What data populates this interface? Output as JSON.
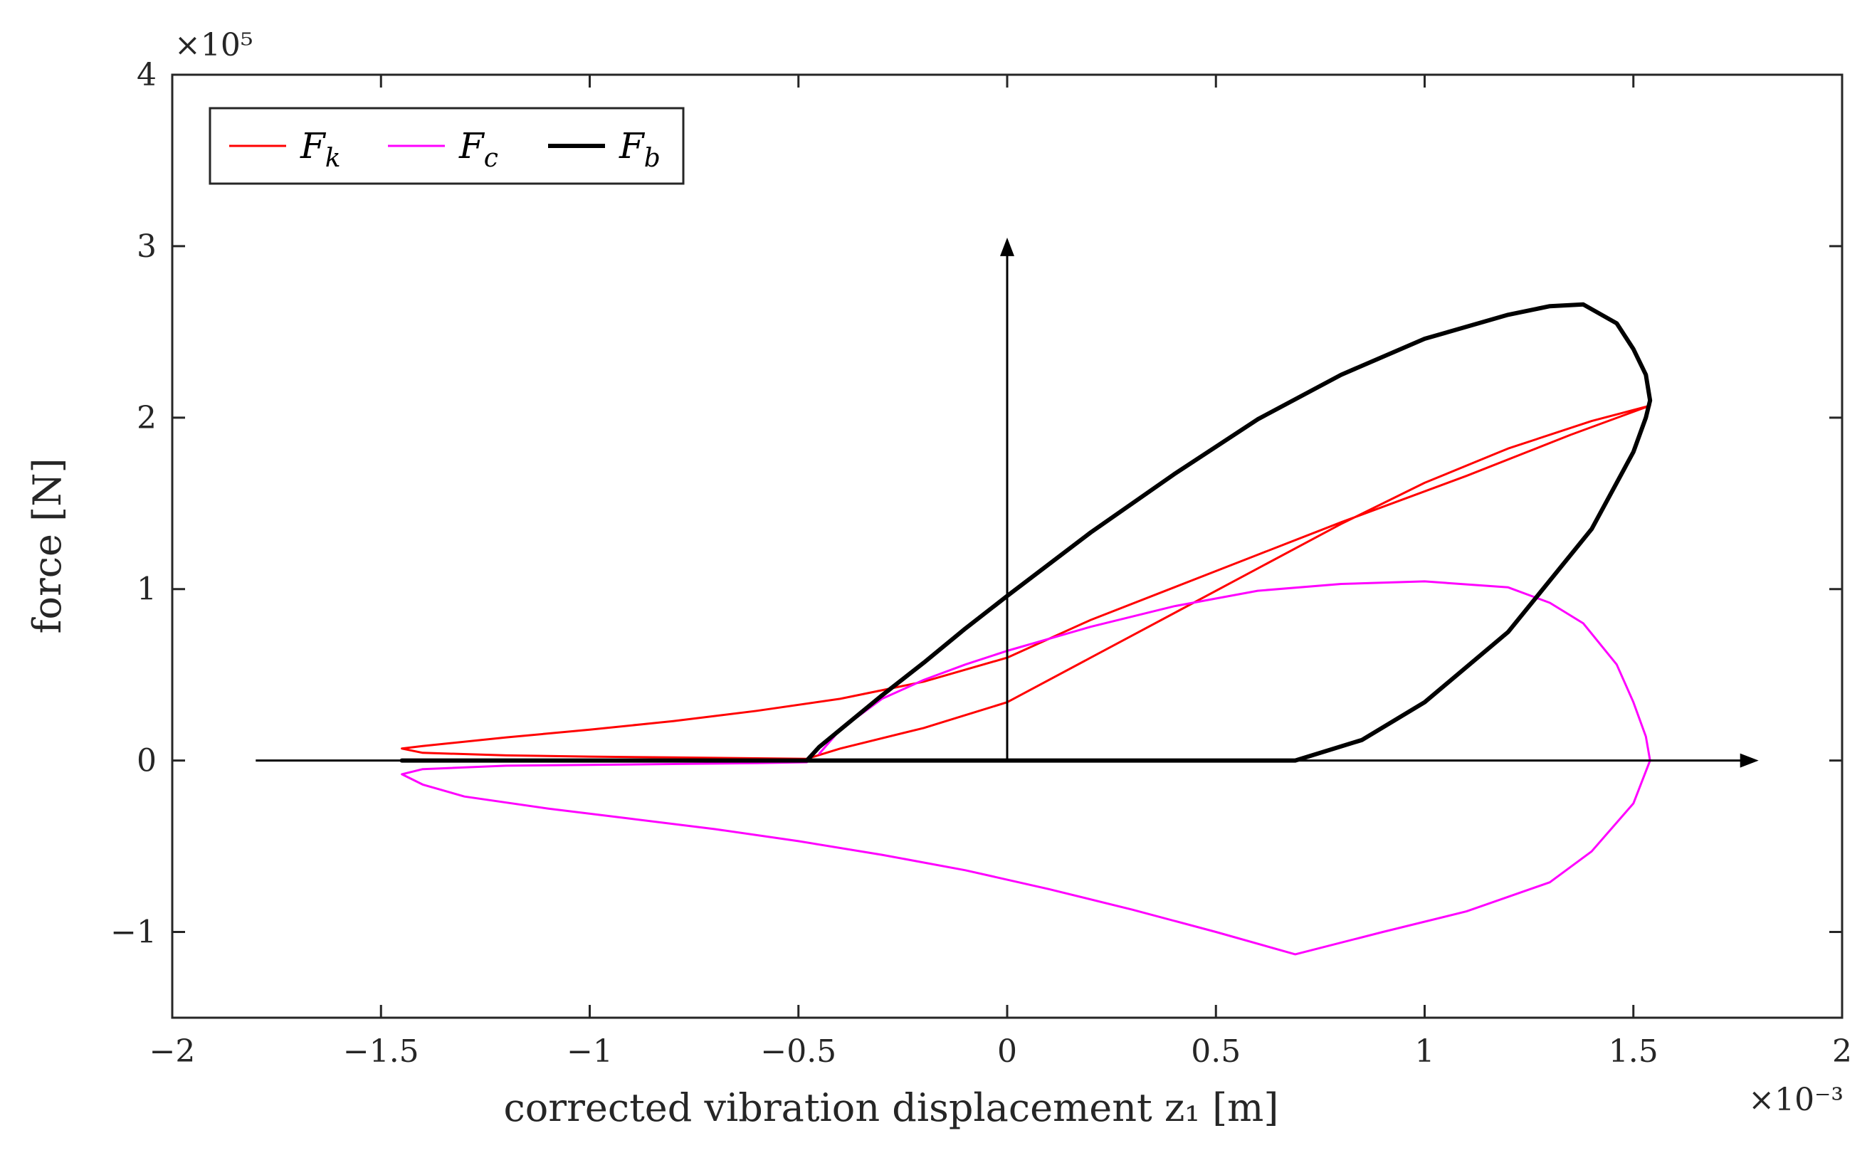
{
  "chart_data": {
    "type": "line",
    "xlabel": "corrected vibration displacement z₁ [m]",
    "ylabel": "force [N]",
    "xlim": [
      -0.002,
      0.002
    ],
    "ylim": [
      -150000,
      400000
    ],
    "x_ticks": [
      -0.002,
      -0.0015,
      -0.001,
      -0.0005,
      0,
      0.0005,
      0.001,
      0.0015,
      0.002
    ],
    "x_tick_labels": [
      "−2",
      "−1.5",
      "−1",
      "−0.5",
      "0",
      "0.5",
      "1",
      "1.5",
      "2"
    ],
    "y_ticks": [
      -100000,
      0,
      100000,
      200000,
      300000,
      400000
    ],
    "y_tick_labels": [
      "−1",
      "0",
      "1",
      "2",
      "3",
      "4"
    ],
    "x_exponent_label": "×10⁻³",
    "y_exponent_label": "×10⁵",
    "legend": {
      "position": "top-left",
      "entries": [
        {
          "label": "F_k",
          "base": "F",
          "sub": "k",
          "color": "#ff0000"
        },
        {
          "label": "F_c",
          "base": "F",
          "sub": "c",
          "color": "#ff00ff"
        },
        {
          "label": "F_b",
          "base": "F",
          "sub": "b",
          "color": "#000000"
        }
      ]
    },
    "annotations": {
      "x_axis_arrow": {
        "from": [
          -0.0018,
          0
        ],
        "to": [
          0.0018,
          0
        ]
      },
      "y_axis_arrow": {
        "from": [
          0,
          0
        ],
        "to": [
          0,
          305000
        ]
      }
    },
    "series": [
      {
        "name": "F_k",
        "color": "#ff0000",
        "x": [
          0.00154,
          0.00135,
          0.0011,
          0.0008,
          0.0006,
          0.0004,
          0.0002,
          0.0,
          -0.0002,
          -0.0004,
          -0.0006,
          -0.0008,
          -0.001,
          -0.0012,
          -0.0014,
          -0.00145,
          -0.0014,
          -0.0012,
          -0.001,
          -0.0008,
          -0.0006,
          -0.00048,
          -0.0004,
          -0.0002,
          0.0,
          0.0002,
          0.0004,
          0.0006,
          0.0008,
          0.001,
          0.0012,
          0.0014,
          0.00154
        ],
        "y": [
          207000,
          190000,
          166000,
          139000,
          120000,
          101000,
          82000,
          60000,
          46000,
          36000,
          29000,
          23000,
          18000,
          13500,
          8500,
          7000,
          4500,
          3000,
          2300,
          1800,
          1300,
          1000,
          7000,
          19000,
          34000,
          60000,
          86000,
          112000,
          138000,
          162000,
          182000,
          198000,
          207000
        ]
      },
      {
        "name": "F_c",
        "color": "#ff00ff",
        "x": [
          -0.00045,
          -0.0004,
          -0.0003,
          -0.0002,
          -0.0001,
          0.0,
          0.0002,
          0.0004,
          0.0006,
          0.0008,
          0.001,
          0.0012,
          0.0013,
          0.00138,
          0.00146,
          0.0015,
          0.00153,
          0.00154,
          0.0015,
          0.0014,
          0.0013,
          0.0011,
          0.0009,
          0.00069,
          0.0005,
          0.0003,
          0.0001,
          -0.0001,
          -0.0003,
          -0.0005,
          -0.0007,
          -0.0009,
          -0.0011,
          -0.0013,
          -0.0014,
          -0.00145,
          -0.0014,
          -0.0012,
          -0.001,
          -0.0008,
          -0.0006,
          -0.00048
        ],
        "y": [
          4000,
          18000,
          36000,
          47000,
          56000,
          64000,
          78000,
          90000,
          99000,
          103000,
          104500,
          101000,
          92000,
          80000,
          56000,
          34000,
          14000,
          0,
          -25000,
          -53000,
          -71000,
          -88000,
          -100000,
          -113000,
          -100000,
          -87000,
          -75000,
          -64000,
          -55000,
          -47000,
          -40000,
          -34000,
          -28000,
          -21000,
          -14000,
          -8000,
          -5000,
          -3000,
          -2500,
          -2000,
          -1500,
          -1000
        ]
      },
      {
        "name": "F_b",
        "color": "#000000",
        "x": [
          -0.00145,
          -0.0012,
          -0.001,
          -0.0008,
          -0.0006,
          -0.00048,
          -0.00045,
          -0.0004,
          -0.0003,
          -0.0002,
          -0.0001,
          0.0,
          0.0002,
          0.0004,
          0.0006,
          0.0008,
          0.001,
          0.0012,
          0.0013,
          0.00138,
          0.00146,
          0.0015,
          0.00153,
          0.00154,
          0.00153,
          0.0015,
          0.0014,
          0.0012,
          0.001,
          0.00085,
          0.00069,
          0.0005,
          0.0003,
          0.0001,
          -0.0001,
          -0.0003,
          -0.00048
        ],
        "y": [
          0,
          0,
          0,
          0,
          0,
          0,
          8000,
          18000,
          38000,
          57000,
          77000,
          96000,
          133000,
          167000,
          199000,
          225000,
          246000,
          260000,
          265000,
          266000,
          255000,
          240000,
          225000,
          210000,
          200000,
          180000,
          135000,
          75000,
          34000,
          12000,
          0,
          0,
          0,
          0,
          0,
          0,
          0
        ]
      }
    ]
  }
}
